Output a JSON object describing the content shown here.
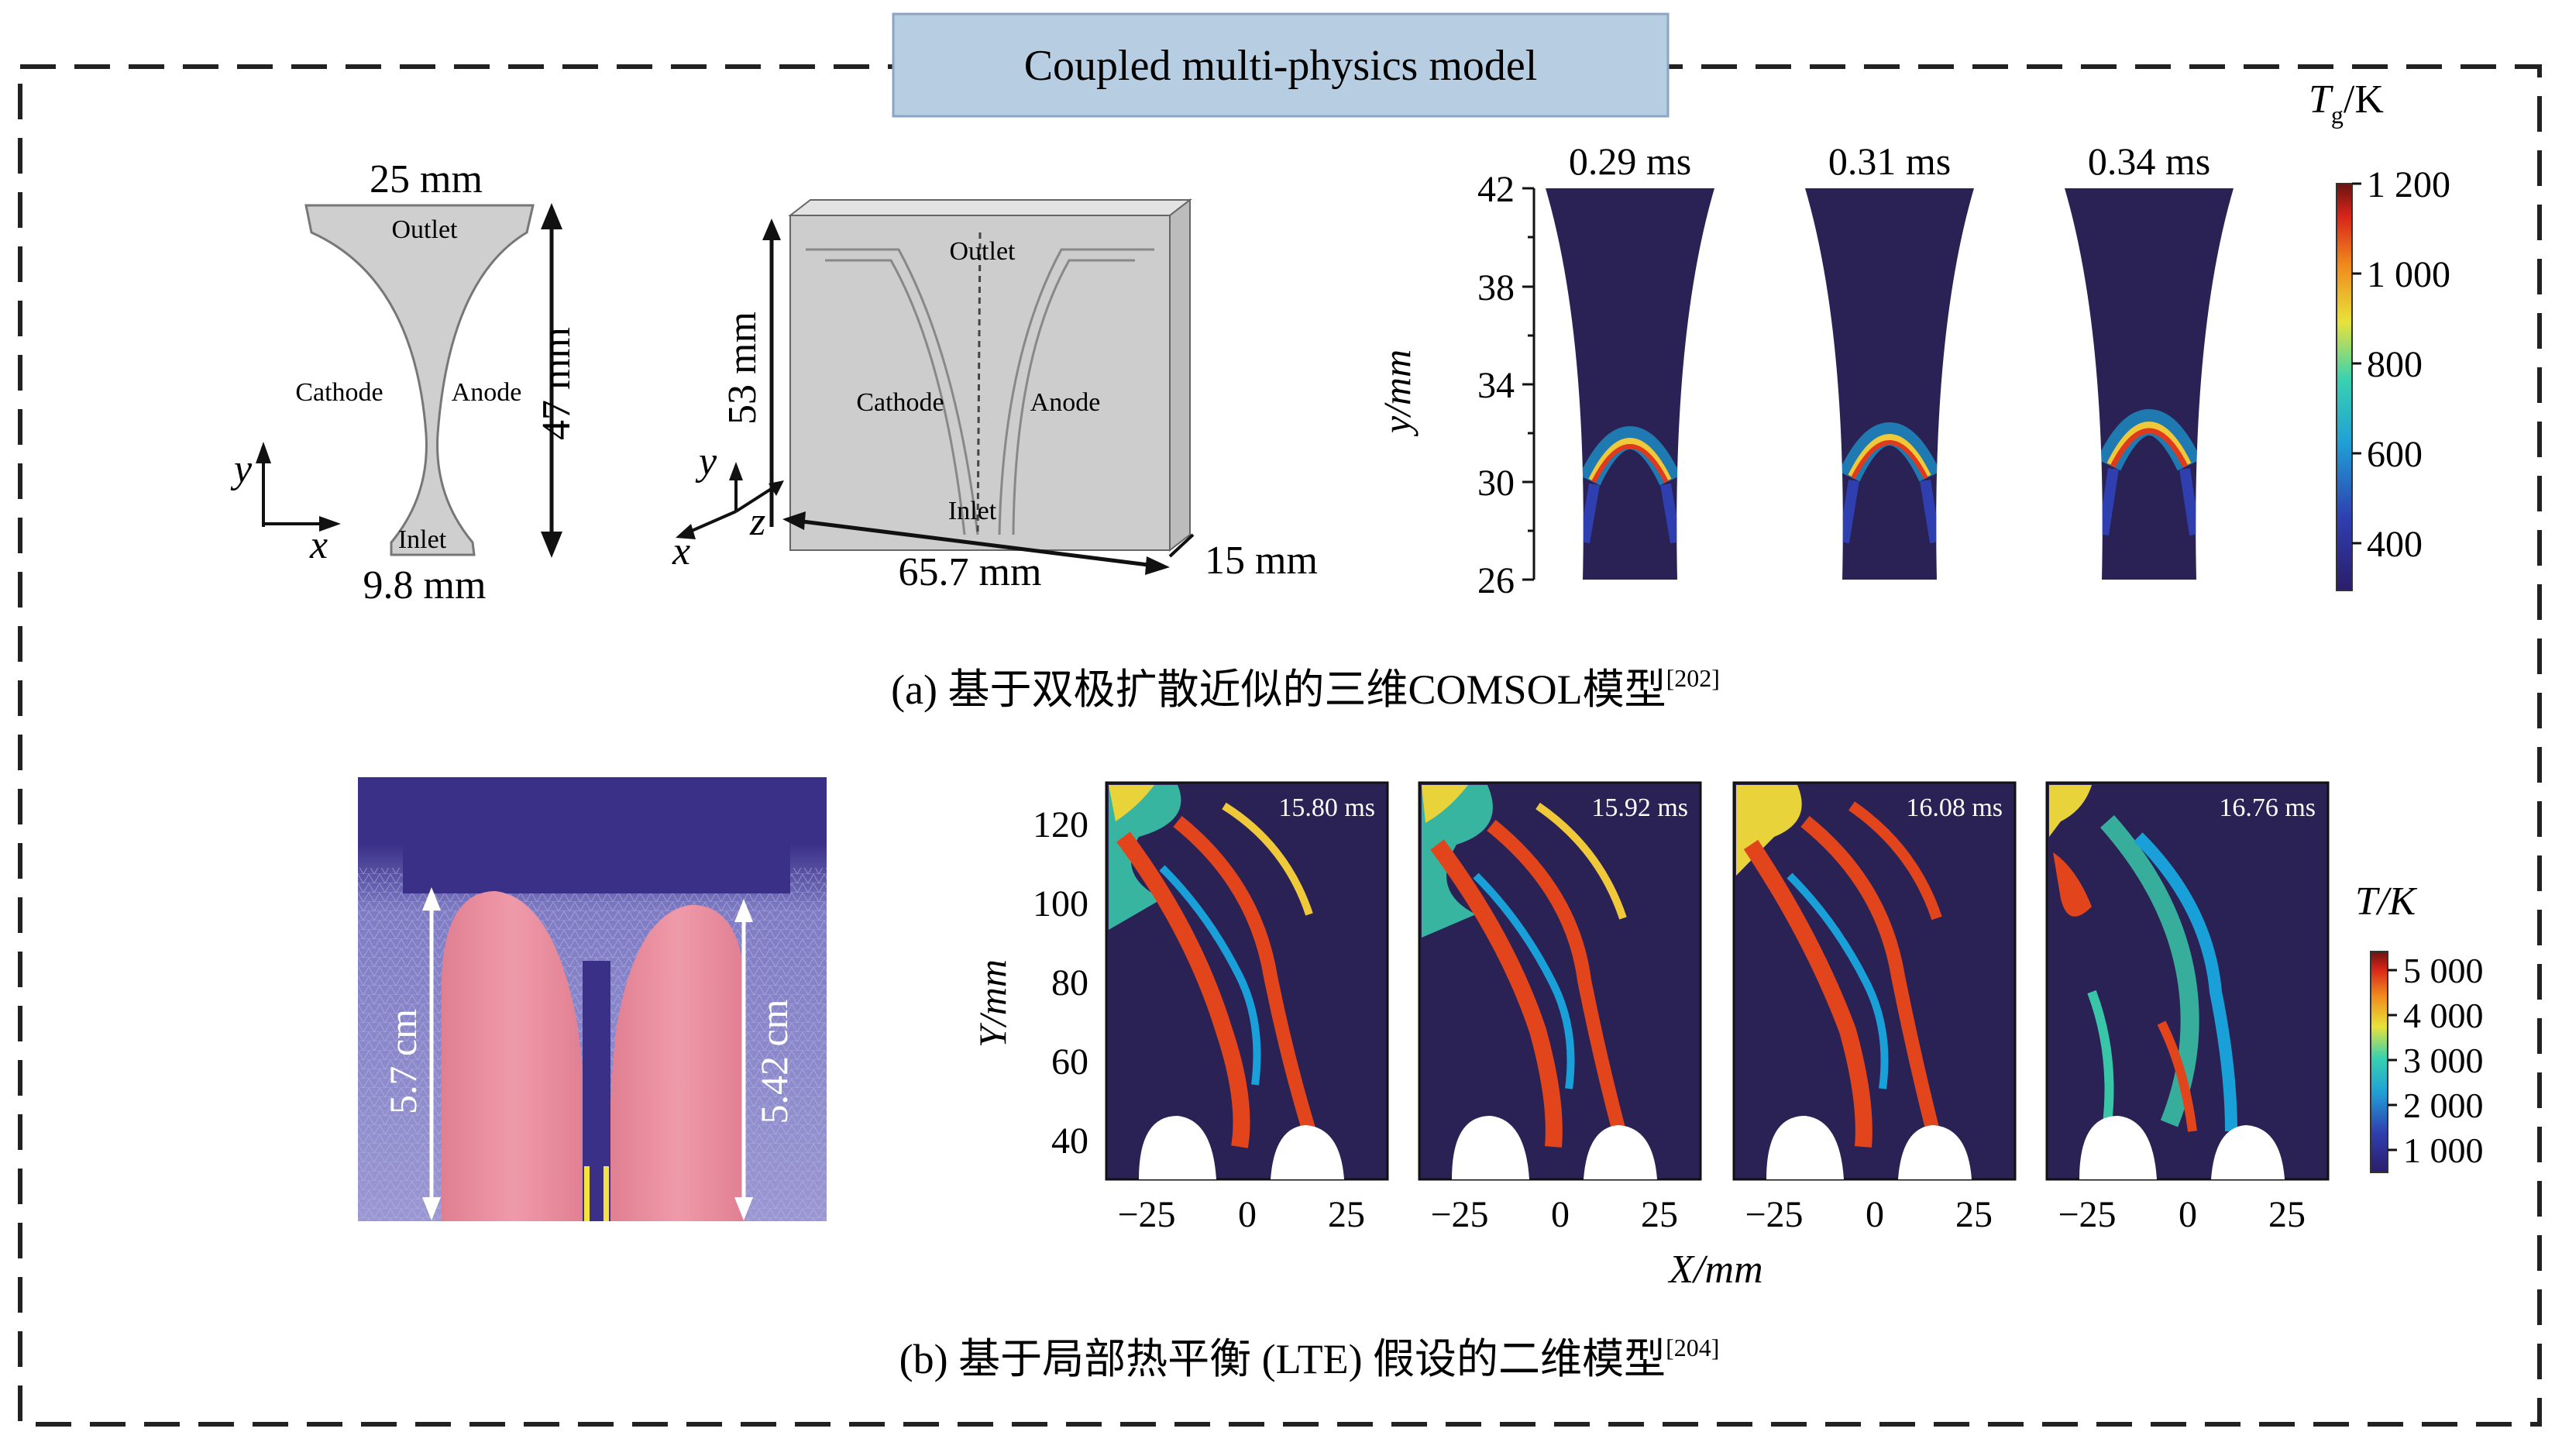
{
  "header": {
    "title": "Coupled multi-physics model"
  },
  "panel_a": {
    "caption": {
      "text": "(a) 基于双极扩散近似的三维COMSOL模型",
      "ref": "[202]"
    },
    "geom2d": {
      "top_width": "25 mm",
      "bottom_width": "9.8 mm",
      "height": "47 mm",
      "outlet": "Outlet",
      "inlet": "Inlet",
      "cathode": "Cathode",
      "anode": "Anode",
      "axis_x": "x",
      "axis_y": "y"
    },
    "geom3d": {
      "height": "53 mm",
      "width": "65.7 mm",
      "depth": "15 mm",
      "outlet": "Outlet",
      "inlet": "Inlet",
      "cathode": "Cathode",
      "anode": "Anode",
      "axis_x": "x",
      "axis_y": "y",
      "axis_z": "z"
    },
    "tg_plot": {
      "ylabel": "y/mm",
      "yticks": [
        "42",
        "38",
        "34",
        "30",
        "26"
      ],
      "times": [
        "0.29 ms",
        "0.31 ms",
        "0.34 ms"
      ],
      "colorbar": {
        "label_main": "T",
        "label_sub": "g",
        "label_unit": "/K",
        "ticks": [
          "1 200",
          "1 000",
          "800",
          "600",
          "400"
        ]
      }
    }
  },
  "panel_b": {
    "caption": {
      "text": "(b) 基于局部热平衡 (LTE) 假设的二维模型",
      "ref": "[204]"
    },
    "mesh": {
      "left_height": "5.7 cm",
      "right_height": "5.42 cm"
    },
    "t_plot": {
      "ylabel": "Y/mm",
      "xlabel": "X/mm",
      "yticks": [
        "120",
        "100",
        "80",
        "60",
        "40"
      ],
      "xticks": [
        "−25",
        "0",
        "25"
      ],
      "times": [
        "15.80 ms",
        "15.92 ms",
        "16.08 ms",
        "16.76 ms"
      ],
      "colorbar": {
        "label": "T/K",
        "ticks": [
          "5 000",
          "4 000",
          "3 000",
          "2 000",
          "1 000"
        ]
      }
    }
  },
  "colors": {
    "background_dark": "#2a2255",
    "title_box": "#b7cde2",
    "electrode": "#e8899a",
    "mesh": "#8a86c8"
  }
}
